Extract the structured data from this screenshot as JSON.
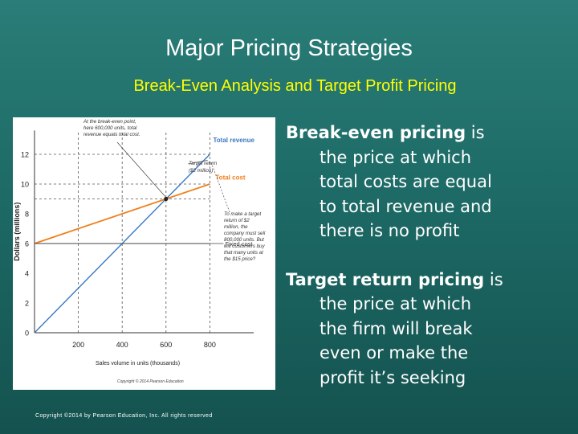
{
  "slide": {
    "title": "Major Pricing Strategies",
    "subtitle": "Break-Even Analysis and Target Profit Pricing",
    "copyright": "Copyright ©2014 by Pearson Education, Inc. All rights reserved"
  },
  "bullets": [
    {
      "term": "Break-even pricing",
      "first_tail": " is",
      "rest": [
        "the price at which",
        "total costs are equal",
        "to total revenue and",
        "there is no profit"
      ]
    },
    {
      "term": "Target return pricing",
      "first_tail": " is",
      "rest": [
        "the price at which",
        "the firm will break",
        "even or make the",
        "profit it’s seeking"
      ]
    }
  ],
  "colors": {
    "background": "#1d6a66",
    "title": "#ffffff",
    "subtitle": "#ffff00",
    "total_revenue": "#3a78c0",
    "total_cost": "#f07f1a",
    "fixed_cost": "#444444"
  },
  "chart_data": {
    "type": "line",
    "xlabel": "Sales volume in units (thousands)",
    "ylabel": "Dollars (millions)",
    "xlim": [
      0,
      1000
    ],
    "ylim": [
      0,
      14
    ],
    "x_ticks": [
      200,
      400,
      600,
      800
    ],
    "y_ticks": [
      0,
      2,
      4,
      6,
      8,
      10,
      12
    ],
    "series": [
      {
        "name": "Total revenue",
        "x": [
          0,
          800
        ],
        "y": [
          0,
          12
        ]
      },
      {
        "name": "Total cost",
        "x": [
          0,
          800
        ],
        "y": [
          6,
          10
        ]
      },
      {
        "name": "Fixed cost",
        "x": [
          0,
          800
        ],
        "y": [
          6,
          6
        ]
      }
    ],
    "reference_lines": [
      {
        "axis": "y",
        "value": 12
      },
      {
        "axis": "y",
        "value": 10
      },
      {
        "axis": "y",
        "value": 9
      },
      {
        "axis": "x",
        "value": 200
      },
      {
        "axis": "x",
        "value": 400
      },
      {
        "axis": "x",
        "value": 600
      },
      {
        "axis": "x",
        "value": 800
      }
    ],
    "annotations": [
      {
        "text": "At the break-even point, here 600,000 units, total revenue equals total cost."
      },
      {
        "text": "Target return ($2 million)"
      },
      {
        "text": "To make a target return of $2 million, the company must sell 800,000 units. But will customers buy that many units at the $15 price?"
      }
    ],
    "source": "Copyright © 2014 Pearson Education",
    "grid": false
  }
}
